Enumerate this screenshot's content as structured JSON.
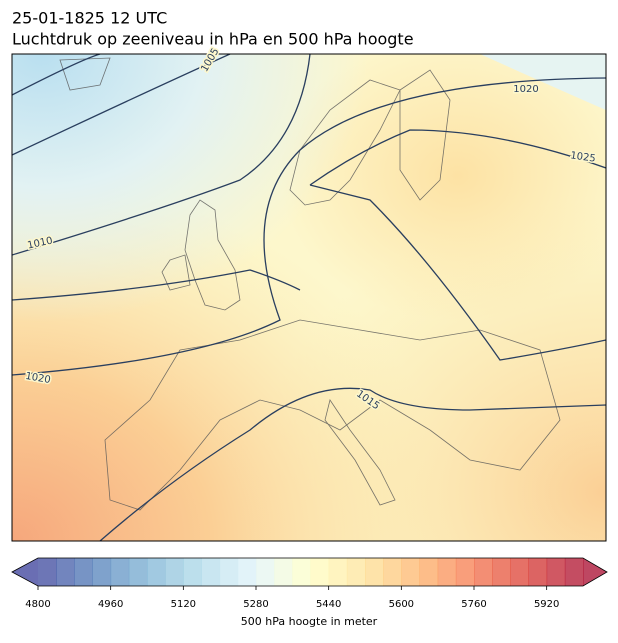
{
  "header": {
    "datetime": "25-01-1825 12 UTC",
    "title": "Luchtdruk op zeeniveau in hPa en 500 hPa hoogte"
  },
  "map": {
    "isobar_labels": [
      1005,
      1010,
      1020,
      1020,
      1025,
      1015
    ]
  },
  "colorbar": {
    "label": "500 hPa hoogte in meter",
    "lim": [
      4800,
      6000
    ],
    "step": 40,
    "ticks": [
      4800,
      4960,
      5120,
      5280,
      5440,
      5600,
      5760,
      5920
    ],
    "colormap": [
      "#313695",
      "#4575b4",
      "#74add1",
      "#abd9e9",
      "#e0f3f8",
      "#ffffbf",
      "#fee090",
      "#fdae61",
      "#f46d43",
      "#d73027",
      "#a50026"
    ],
    "opacity": 0.72
  }
}
